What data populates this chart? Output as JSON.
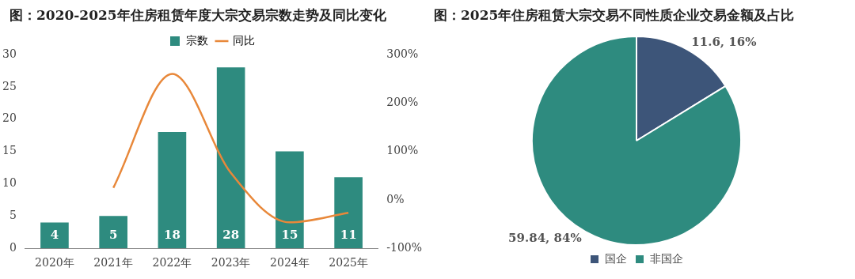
{
  "chart_data": [
    {
      "type": "bar",
      "title": "图：2020-2025年住房租赁年度大宗交易宗数走势及同比变化",
      "categories": [
        "2020年",
        "2021年",
        "2022年",
        "2023年",
        "2024年",
        "2025年"
      ],
      "series": [
        {
          "name": "宗数",
          "type": "bar",
          "color": "#2e8b7f",
          "values": [
            4,
            5,
            18,
            28,
            15,
            11
          ],
          "value_labels": [
            "4",
            "5",
            "18",
            "28",
            "15",
            "11"
          ]
        },
        {
          "name": "同比",
          "type": "line",
          "axis": "y2",
          "color": "#e8883a",
          "values": [
            null,
            25,
            260,
            55.6,
            -46.4,
            -26.7
          ]
        }
      ],
      "ylim": [
        0,
        30
      ],
      "yticks": [
        0,
        5,
        10,
        15,
        20,
        25,
        30
      ],
      "y2lim": [
        -100,
        300
      ],
      "y2ticks": [
        {
          "value": -100,
          "label": "-100%"
        },
        {
          "value": 0,
          "label": "0%"
        },
        {
          "value": 100,
          "label": "100%"
        },
        {
          "value": 200,
          "label": "200%"
        },
        {
          "value": 300,
          "label": "300%"
        }
      ],
      "grid": false,
      "legend": "top",
      "marker": "none"
    },
    {
      "type": "pie",
      "title": "图：2025年住房租赁大宗交易不同性质企业交易金额及占比",
      "categories": [
        "国企",
        "非国企"
      ],
      "values": [
        11.6,
        59.84
      ],
      "colors": [
        "#3d5579",
        "#2e8b7f"
      ],
      "value_labels": [
        "11.6, 16%",
        "59.84, 84%"
      ],
      "legend": "bottom"
    }
  ]
}
